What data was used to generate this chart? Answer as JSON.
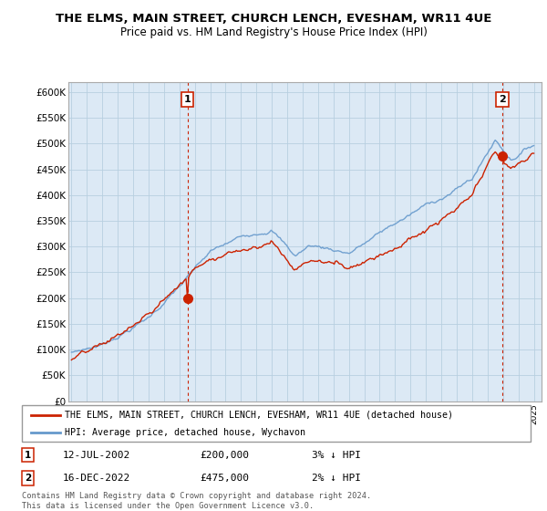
{
  "title": "THE ELMS, MAIN STREET, CHURCH LENCH, EVESHAM, WR11 4UE",
  "subtitle": "Price paid vs. HM Land Registry's House Price Index (HPI)",
  "legend_label_red": "THE ELMS, MAIN STREET, CHURCH LENCH, EVESHAM, WR11 4UE (detached house)",
  "legend_label_blue": "HPI: Average price, detached house, Wychavon",
  "annotation1_label": "1",
  "annotation1_date": "12-JUL-2002",
  "annotation1_price": "£200,000",
  "annotation1_hpi": "3% ↓ HPI",
  "annotation2_label": "2",
  "annotation2_date": "16-DEC-2022",
  "annotation2_price": "£475,000",
  "annotation2_hpi": "2% ↓ HPI",
  "footer": "Contains HM Land Registry data © Crown copyright and database right 2024.\nThis data is licensed under the Open Government Licence v3.0.",
  "ylim": [
    0,
    620000
  ],
  "yticks": [
    0,
    50000,
    100000,
    150000,
    200000,
    250000,
    300000,
    350000,
    400000,
    450000,
    500000,
    550000,
    600000
  ],
  "ytick_labels": [
    "£0",
    "£50K",
    "£100K",
    "£150K",
    "£200K",
    "£250K",
    "£300K",
    "£350K",
    "£400K",
    "£450K",
    "£500K",
    "£550K",
    "£600K"
  ],
  "chart_bg_color": "#dce9f5",
  "fig_bg_color": "#ffffff",
  "grid_color": "#b8cfe0",
  "red_color": "#cc2200",
  "blue_color": "#6699cc",
  "annotation_line_color": "#cc2200",
  "sale1_x": 2002.53,
  "sale1_y": 200000,
  "sale2_x": 2022.96,
  "sale2_y": 475000,
  "xmin": 1994.8,
  "xmax": 2025.5
}
